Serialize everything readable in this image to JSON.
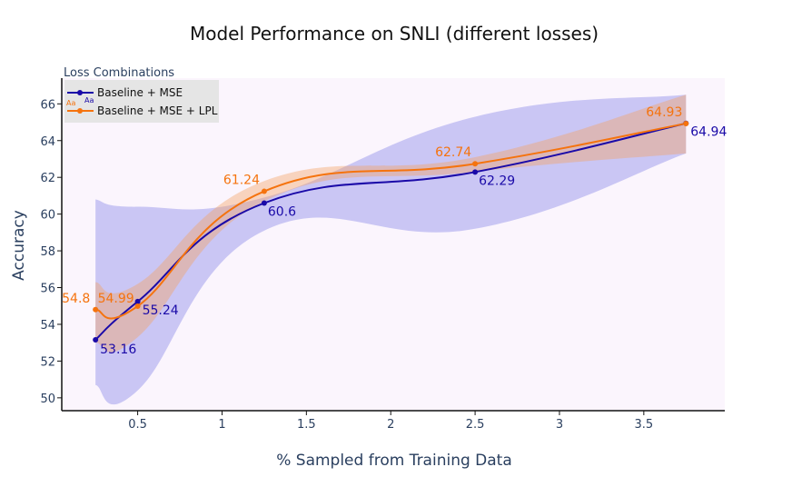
{
  "chart_data": {
    "type": "line",
    "title": "Model Performance on SNLI (different losses)",
    "xlabel": "% Sampled from Training Data",
    "ylabel": "Accuracy",
    "xlim": [
      0.05,
      3.98
    ],
    "ylim": [
      49.3,
      67.4
    ],
    "xticks": [
      0.5,
      1,
      1.5,
      2,
      2.5,
      3,
      3.5
    ],
    "xtick_labels": [
      "0.5",
      "1",
      "1.5",
      "2",
      "2.5",
      "3",
      "3.5"
    ],
    "yticks": [
      50,
      52,
      54,
      56,
      58,
      60,
      62,
      64,
      66
    ],
    "ytick_labels": [
      "50",
      "52",
      "54",
      "56",
      "58",
      "60",
      "62",
      "64",
      "66"
    ],
    "legend": {
      "title": "Loss Combinations",
      "placement": "top-left",
      "marker_text": "Aa"
    },
    "series": [
      {
        "name": "Baseline + MSE",
        "color": "#1a0aa8",
        "band_color": "#8f8ee8",
        "x": [
          0.25,
          0.5,
          1.25,
          2.5,
          3.75
        ],
        "values": [
          53.16,
          55.24,
          60.6,
          62.29,
          64.94
        ],
        "labels": [
          "53.16",
          "55.24",
          "60.6",
          "62.29",
          "64.94"
        ],
        "upper": [
          60.8,
          60.4,
          60.9,
          65.3,
          66.5
        ],
        "lower": [
          50.7,
          50.4,
          59.1,
          59.2,
          63.3
        ]
      },
      {
        "name": "Baseline + MSE + LPL",
        "color": "#f5730e",
        "band_color": "#f5a060",
        "x": [
          0.25,
          0.5,
          1.25,
          2.5,
          3.75
        ],
        "values": [
          54.8,
          54.99,
          61.24,
          62.74,
          64.93
        ],
        "labels": [
          "54.8",
          "54.99",
          "61.24",
          "62.74",
          "64.93"
        ],
        "upper": [
          56.3,
          56.2,
          61.8,
          63.1,
          66.5
        ],
        "lower": [
          53.0,
          53.3,
          60.7,
          62.3,
          63.3
        ]
      }
    ]
  }
}
